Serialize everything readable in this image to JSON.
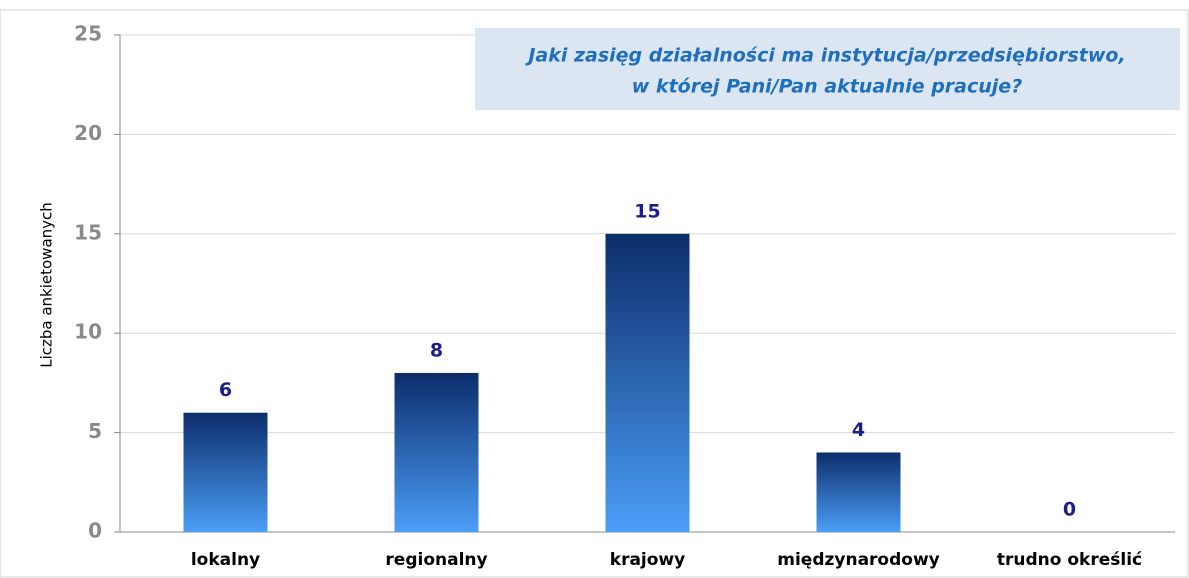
{
  "chart_data": {
    "type": "bar",
    "title": [
      "Jaki zasięg działalności ma instytucja/przedsiębiorstwo,",
      "w której Pani/Pan aktualnie pracuje?"
    ],
    "y_label": "Liczba ankietowanych",
    "categories": [
      "lokalny",
      "regionalny",
      "krajowy",
      "międzynarodowy",
      "trudno określić"
    ],
    "values": [
      6,
      8,
      15,
      4,
      0
    ],
    "color": [
      "#0c2d6b",
      "#4b9ef7"
    ],
    "ylim": [
      0,
      25
    ],
    "yticks": [
      0,
      5,
      10,
      15,
      20,
      25
    ],
    "grid": true
  }
}
